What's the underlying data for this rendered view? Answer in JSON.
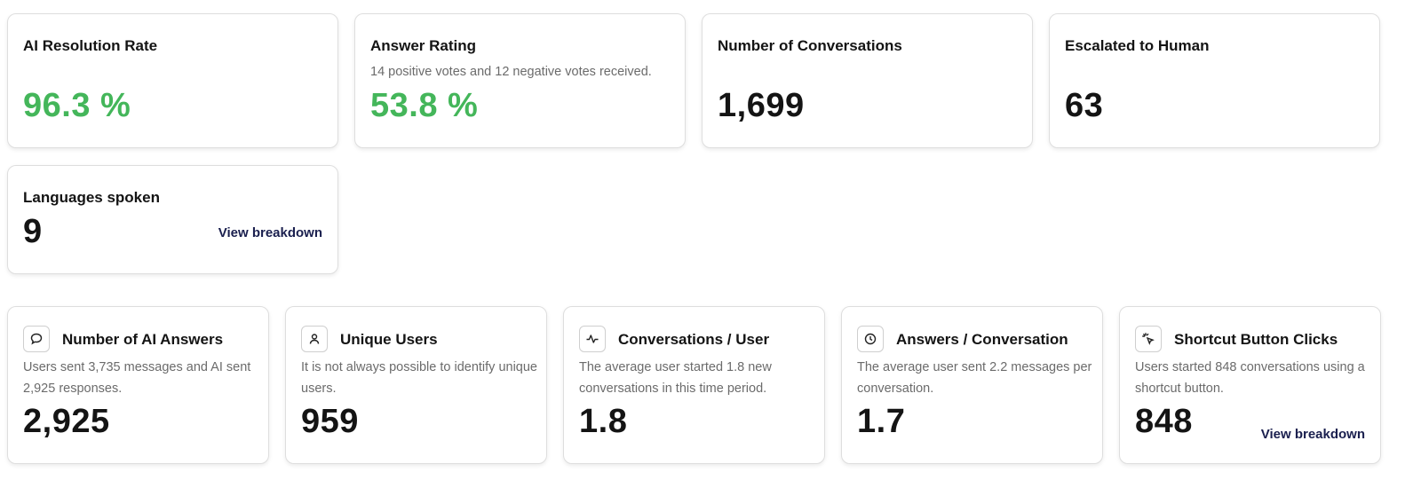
{
  "top_cards": [
    {
      "title": "AI Resolution Rate",
      "subtitle": "",
      "value": "96.3 %"
    },
    {
      "title": "Answer Rating",
      "subtitle": "14 positive votes and 12 negative votes received.",
      "value": "53.8 %"
    },
    {
      "title": "Number of Conversations",
      "subtitle": "",
      "value": "1,699"
    },
    {
      "title": "Escalated to Human",
      "subtitle": "",
      "value": "63"
    }
  ],
  "languages_card": {
    "title": "Languages spoken",
    "value": "9",
    "link": "View breakdown"
  },
  "bottom_cards": [
    {
      "icon": "chat-bubble-icon",
      "title": "Number of AI Answers",
      "description": "Users sent 3,735 messages and AI sent 2,925 responses.",
      "value": "2,925"
    },
    {
      "icon": "user-icon",
      "title": "Unique Users",
      "description": "It is not always possible to identify unique users.",
      "value": "959"
    },
    {
      "icon": "activity-icon",
      "title": "Conversations / User",
      "description": "The average user started 1.8 new conversations in this time period.",
      "value": "1.8"
    },
    {
      "icon": "clock-icon",
      "title": "Answers / Conversation",
      "description": "The average user sent 2.2 messages per conversation.",
      "value": "1.7"
    },
    {
      "icon": "cursor-click-icon",
      "title": "Shortcut Button Clicks",
      "description": "Users started 848 conversations using a shortcut button.",
      "value": "848",
      "link": "View breakdown"
    }
  ],
  "colors": {
    "positive": "#44b65a",
    "text": "#141414",
    "link": "#1a1f4e",
    "muted": "#6b6b6b"
  }
}
